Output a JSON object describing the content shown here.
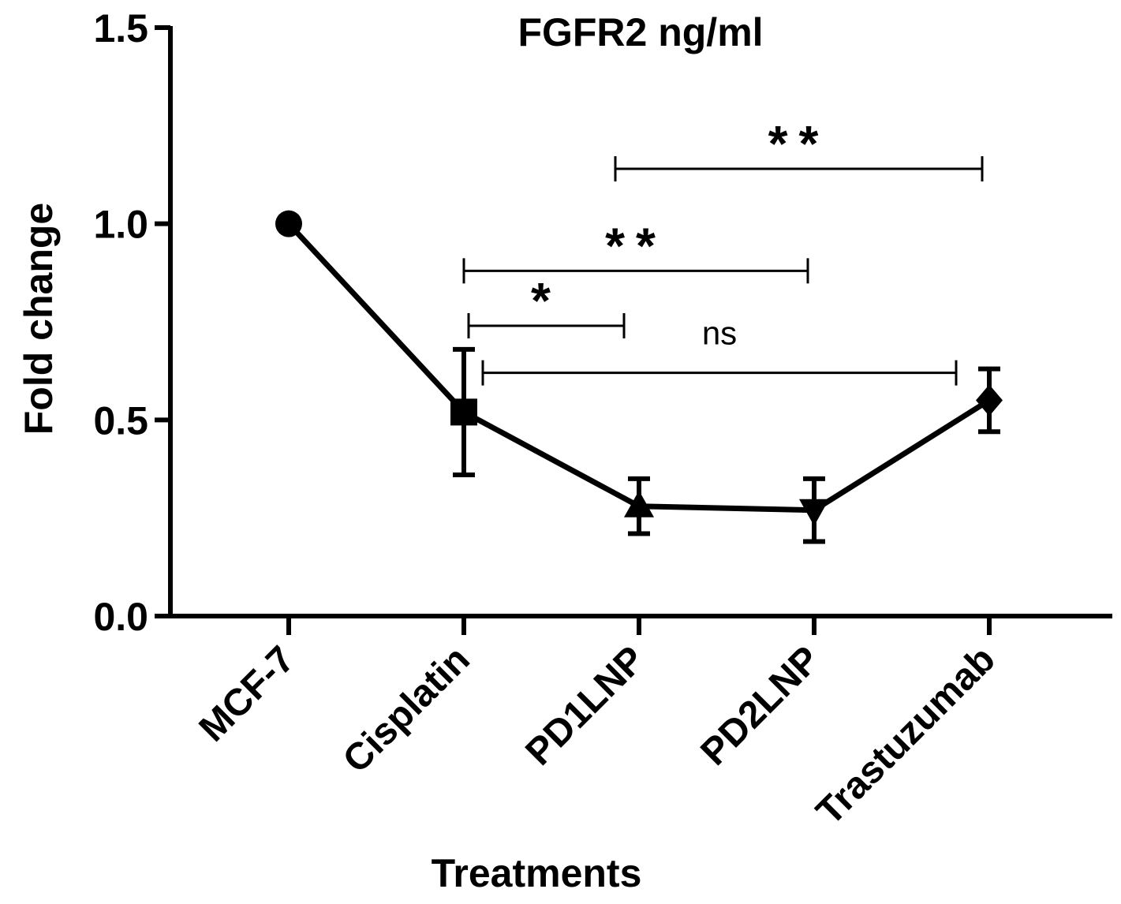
{
  "chart_data": {
    "type": "line",
    "title": "FGFR2 ng/ml",
    "xlabel": "Treatments",
    "ylabel": "Fold change",
    "ylim": [
      0,
      1.5
    ],
    "yticks": [
      "0.0",
      "0.5",
      "1.0",
      "1.5"
    ],
    "categories": [
      "MCF-7",
      "Cisplatin",
      "PD1LNP",
      "PD2LNP",
      "Trastuzumab"
    ],
    "series": [
      {
        "name": "FGFR2 ng/ml",
        "values": [
          1.0,
          0.52,
          0.28,
          0.27,
          0.55
        ],
        "errors": [
          0,
          0.16,
          0.07,
          0.08,
          0.08
        ],
        "markers": [
          "circle",
          "square",
          "triangle-up",
          "triangle-down",
          "diamond"
        ],
        "color": "#000000"
      }
    ],
    "annotations": [
      {
        "label": "**",
        "from": "PD1LNP",
        "to": "Trastuzumab",
        "y": 1.14
      },
      {
        "label": "**",
        "from": "Cisplatin",
        "to": "PD2LNP",
        "y": 0.88
      },
      {
        "label": "*",
        "from": "Cisplatin",
        "to": "PD1LNP",
        "y": 0.74
      },
      {
        "label": "ns",
        "from": "Cisplatin",
        "to": "Trastuzumab",
        "y": 0.62
      }
    ]
  }
}
